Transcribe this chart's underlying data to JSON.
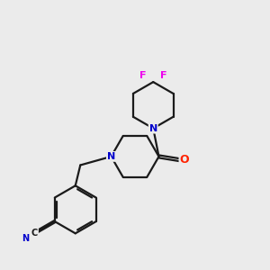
{
  "bg_color": "#ebebeb",
  "bond_color": "#1a1a1a",
  "N_color": "#0000cc",
  "O_color": "#ff2200",
  "F_color": "#ee00ee",
  "C_color": "#1a1a1a",
  "N_text": "N",
  "O_text": "O",
  "F_text": "F",
  "C_text": "C",
  "line_width": 1.6
}
